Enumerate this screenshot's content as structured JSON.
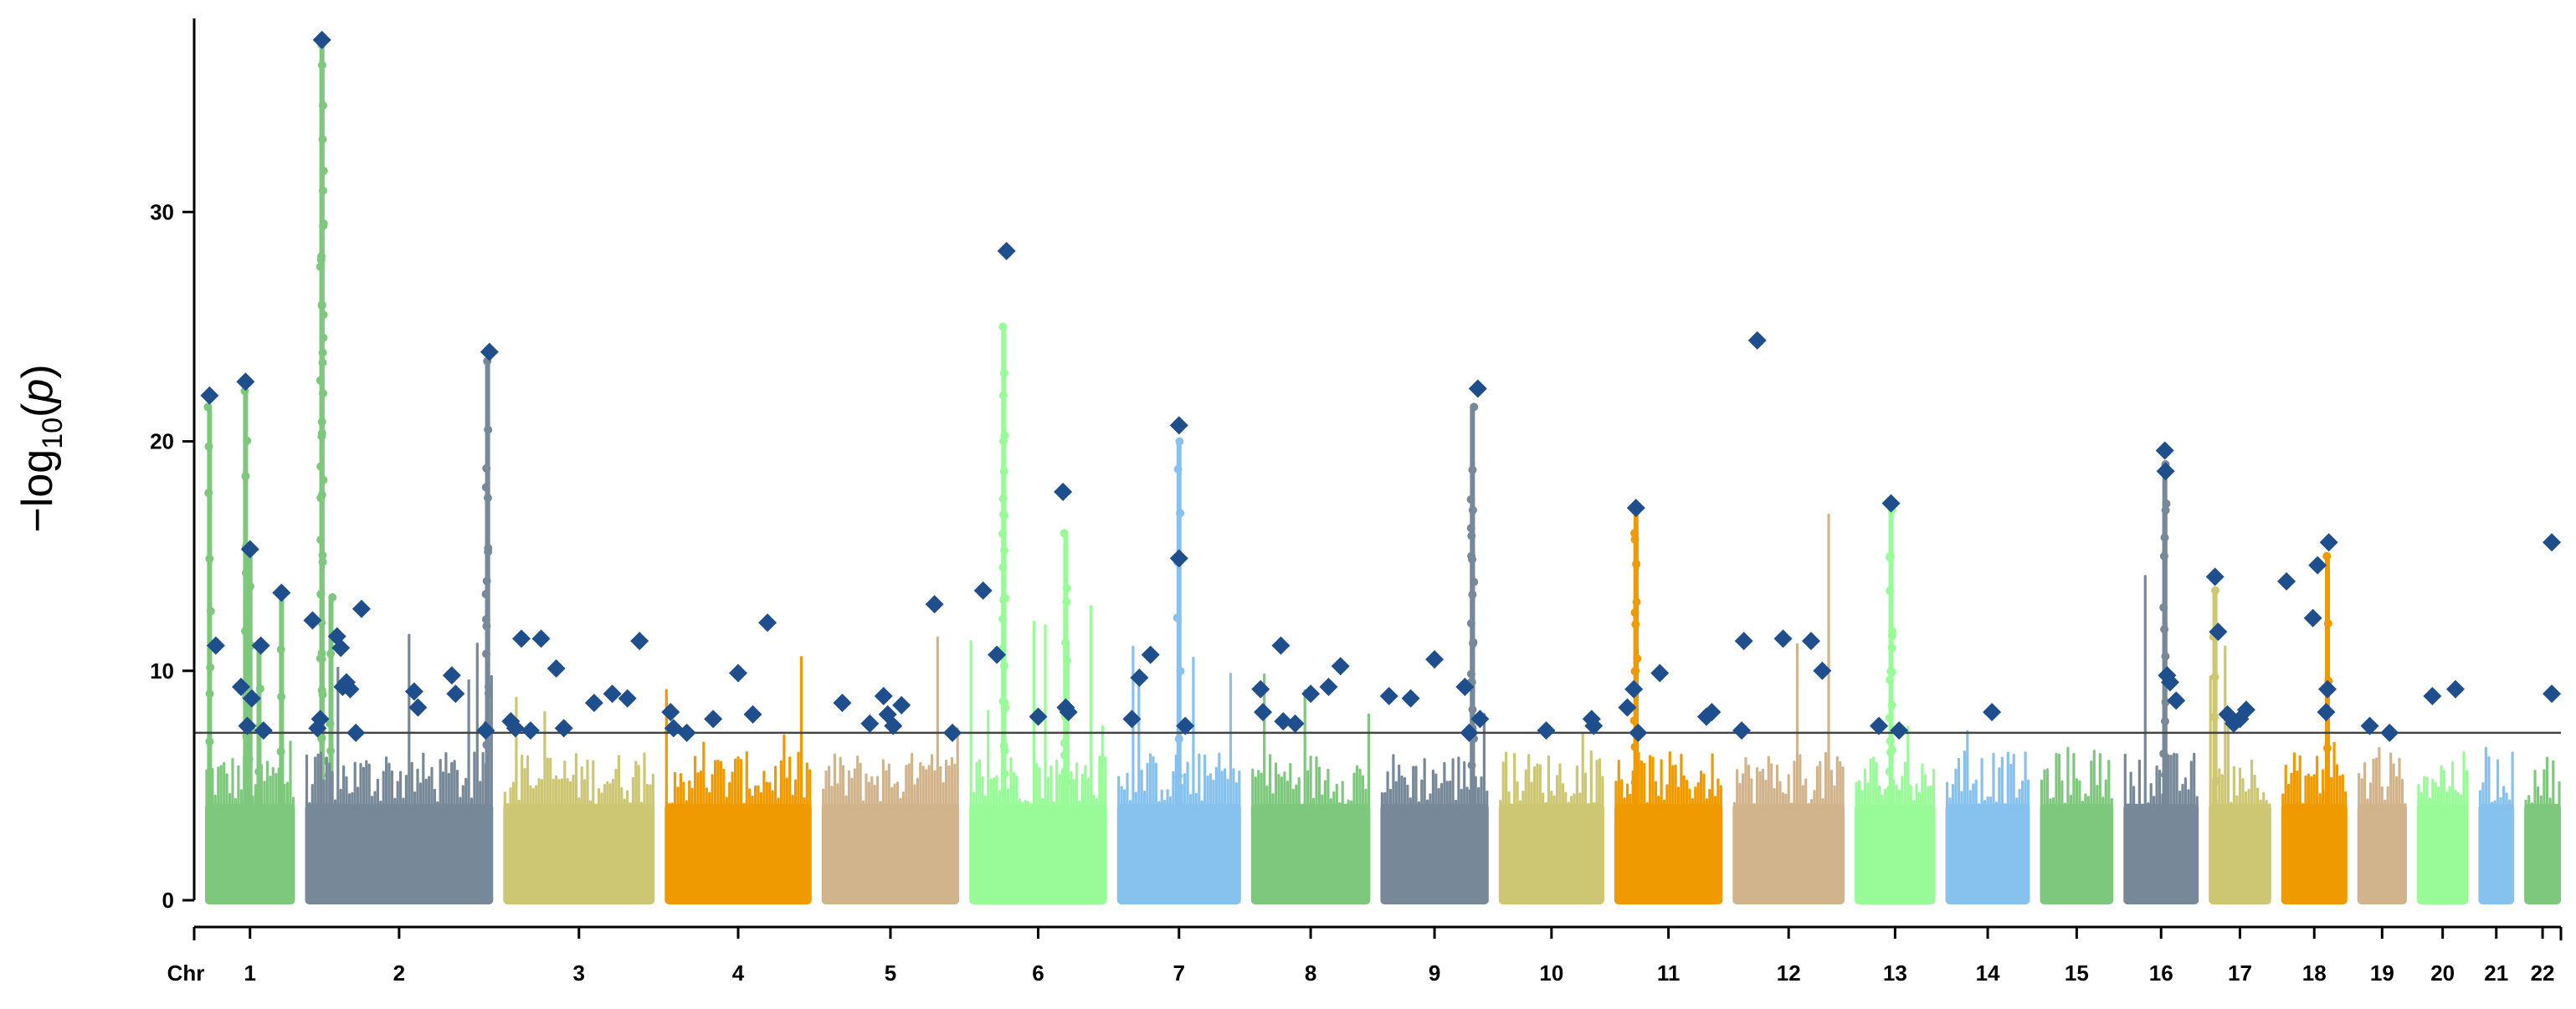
{
  "chart_data": {
    "type": "scatter",
    "subtype": "manhattan",
    "title": "",
    "ylabel": {
      "prefix": "−log",
      "subscript": "10",
      "open": "(",
      "variable": "p",
      "close": ")"
    },
    "xlabel": "Chr",
    "ylim": [
      0,
      38
    ],
    "yticks": [
      0,
      10,
      20,
      30
    ],
    "significance_threshold": 7.3,
    "chromosomes": [
      {
        "name": "1",
        "color": "#7ec87e",
        "max": 13,
        "spikes": [
          [
            0.05,
            21.5
          ],
          [
            0.45,
            22.2
          ],
          [
            0.5,
            15.2
          ],
          [
            0.6,
            11
          ],
          [
            1.3,
            37.3
          ],
          [
            1.3,
            36.4
          ],
          [
            1.3,
            29.5
          ],
          [
            0.85,
            13.3
          ],
          [
            1.4,
            13.2
          ]
        ]
      },
      {
        "name": "2",
        "color": "#778899",
        "max": 12.5,
        "spikes": [
          [
            0.97,
            23.5
          ],
          [
            0.97,
            18
          ]
        ]
      },
      {
        "name": "3",
        "color": "#cdc673",
        "max": 11,
        "spikes": []
      },
      {
        "name": "4",
        "color": "#ee9a00",
        "max": 10.5,
        "spikes": []
      },
      {
        "name": "5",
        "color": "#d2b48c",
        "max": 13,
        "spikes": []
      },
      {
        "name": "6",
        "color": "#98fb98",
        "max": 17,
        "spikes": [
          [
            0.25,
            25
          ],
          [
            0.25,
            22
          ],
          [
            0.25,
            17.5
          ],
          [
            0.7,
            16
          ],
          [
            0.7,
            13
          ]
        ]
      },
      {
        "name": "7",
        "color": "#87c1ee",
        "max": 12.5,
        "spikes": [
          [
            0.5,
            20
          ]
        ]
      },
      {
        "name": "8",
        "color": "#7ec87e",
        "max": 11,
        "spikes": []
      },
      {
        "name": "9",
        "color": "#778899",
        "max": 12,
        "spikes": [
          [
            0.85,
            21.5
          ],
          [
            0.85,
            17
          ],
          [
            0.85,
            15
          ]
        ]
      },
      {
        "name": "10",
        "color": "#cdc673",
        "max": 7.6,
        "spikes": []
      },
      {
        "name": "11",
        "color": "#ee9a00",
        "max": 9.5,
        "spikes": [
          [
            0.2,
            17
          ],
          [
            0.2,
            16
          ],
          [
            0.2,
            13
          ]
        ]
      },
      {
        "name": "12",
        "color": "#d2b48c",
        "max": 23,
        "spikes": []
      },
      {
        "name": "13",
        "color": "#98fb98",
        "max": 7.5,
        "spikes": [
          [
            0.45,
            17
          ],
          [
            0.45,
            15
          ],
          [
            0.45,
            11
          ]
        ]
      },
      {
        "name": "14",
        "color": "#87c1ee",
        "max": 8,
        "spikes": []
      },
      {
        "name": "15",
        "color": "#7ec87e",
        "max": 7,
        "spikes": []
      },
      {
        "name": "16",
        "color": "#778899",
        "max": 16.5,
        "spikes": [
          [
            0.55,
            19
          ],
          [
            0.55,
            17
          ]
        ]
      },
      {
        "name": "17",
        "color": "#cdc673",
        "max": 11,
        "spikes": [
          [
            0.1,
            13.5
          ]
        ]
      },
      {
        "name": "18",
        "color": "#ee9a00",
        "max": 13,
        "spikes": [
          [
            0.7,
            15
          ]
        ]
      },
      {
        "name": "19",
        "color": "#d2b48c",
        "max": 7.2,
        "spikes": []
      },
      {
        "name": "20",
        "color": "#98fb98",
        "max": 9,
        "spikes": []
      },
      {
        "name": "21",
        "color": "#87c1ee",
        "max": 6.5,
        "spikes": []
      },
      {
        "name": "22",
        "color": "#7ec87e",
        "max": 15,
        "spikes": []
      }
    ],
    "lead_snp_color": "#1f4e8c",
    "lead_snps": [
      {
        "chr": "1",
        "pos": 0.05,
        "y": 22.0
      },
      {
        "chr": "1",
        "pos": 0.12,
        "y": 11.1
      },
      {
        "chr": "1",
        "pos": 0.4,
        "y": 9.3
      },
      {
        "chr": "1",
        "pos": 0.45,
        "y": 22.6
      },
      {
        "chr": "1",
        "pos": 0.5,
        "y": 15.3
      },
      {
        "chr": "1",
        "pos": 0.52,
        "y": 8.8
      },
      {
        "chr": "1",
        "pos": 0.47,
        "y": 7.6
      },
      {
        "chr": "1",
        "pos": 0.62,
        "y": 11.1
      },
      {
        "chr": "1",
        "pos": 0.65,
        "y": 7.4
      },
      {
        "chr": "1",
        "pos": 0.85,
        "y": 13.4
      },
      {
        "chr": "1",
        "pos": 1.25,
        "y": 7.5
      },
      {
        "chr": "1",
        "pos": 1.28,
        "y": 7.9
      },
      {
        "chr": "1",
        "pos": 1.3,
        "y": 37.5
      },
      {
        "chr": "2",
        "pos": 0.04,
        "y": 12.2
      },
      {
        "chr": "2",
        "pos": 0.17,
        "y": 11.5
      },
      {
        "chr": "2",
        "pos": 0.19,
        "y": 11.0
      },
      {
        "chr": "2",
        "pos": 0.2,
        "y": 9.3
      },
      {
        "chr": "2",
        "pos": 0.22,
        "y": 9.5
      },
      {
        "chr": "2",
        "pos": 0.24,
        "y": 9.2
      },
      {
        "chr": "2",
        "pos": 0.27,
        "y": 7.3
      },
      {
        "chr": "2",
        "pos": 0.3,
        "y": 12.7
      },
      {
        "chr": "2",
        "pos": 0.58,
        "y": 9.1
      },
      {
        "chr": "2",
        "pos": 0.6,
        "y": 8.4
      },
      {
        "chr": "2",
        "pos": 0.78,
        "y": 9.8
      },
      {
        "chr": "2",
        "pos": 0.8,
        "y": 9.0
      },
      {
        "chr": "2",
        "pos": 0.96,
        "y": 7.4
      },
      {
        "chr": "2",
        "pos": 0.98,
        "y": 23.9
      },
      {
        "chr": "3",
        "pos": 0.05,
        "y": 7.8
      },
      {
        "chr": "3",
        "pos": 0.08,
        "y": 7.5
      },
      {
        "chr": "3",
        "pos": 0.12,
        "y": 11.4
      },
      {
        "chr": "3",
        "pos": 0.18,
        "y": 7.4
      },
      {
        "chr": "3",
        "pos": 0.25,
        "y": 11.4
      },
      {
        "chr": "3",
        "pos": 0.35,
        "y": 10.1
      },
      {
        "chr": "3",
        "pos": 0.4,
        "y": 7.5
      },
      {
        "chr": "3",
        "pos": 0.6,
        "y": 8.6
      },
      {
        "chr": "3",
        "pos": 0.72,
        "y": 9.0
      },
      {
        "chr": "3",
        "pos": 0.82,
        "y": 8.8
      },
      {
        "chr": "3",
        "pos": 0.9,
        "y": 11.3
      },
      {
        "chr": "4",
        "pos": 0.04,
        "y": 8.2
      },
      {
        "chr": "4",
        "pos": 0.06,
        "y": 7.5
      },
      {
        "chr": "4",
        "pos": 0.15,
        "y": 7.3
      },
      {
        "chr": "4",
        "pos": 0.33,
        "y": 7.9
      },
      {
        "chr": "4",
        "pos": 0.5,
        "y": 9.9
      },
      {
        "chr": "4",
        "pos": 0.6,
        "y": 8.1
      },
      {
        "chr": "4",
        "pos": 0.7,
        "y": 12.1
      },
      {
        "chr": "5",
        "pos": 0.15,
        "y": 8.6
      },
      {
        "chr": "5",
        "pos": 0.35,
        "y": 7.7
      },
      {
        "chr": "5",
        "pos": 0.45,
        "y": 8.9
      },
      {
        "chr": "5",
        "pos": 0.48,
        "y": 8.1
      },
      {
        "chr": "5",
        "pos": 0.52,
        "y": 7.6
      },
      {
        "chr": "5",
        "pos": 0.58,
        "y": 8.5
      },
      {
        "chr": "5",
        "pos": 0.82,
        "y": 12.9
      },
      {
        "chr": "5",
        "pos": 0.95,
        "y": 7.3
      },
      {
        "chr": "6",
        "pos": 0.1,
        "y": 13.5
      },
      {
        "chr": "6",
        "pos": 0.2,
        "y": 10.7
      },
      {
        "chr": "6",
        "pos": 0.27,
        "y": 28.3
      },
      {
        "chr": "6",
        "pos": 0.5,
        "y": 8.0
      },
      {
        "chr": "6",
        "pos": 0.68,
        "y": 17.8
      },
      {
        "chr": "6",
        "pos": 0.7,
        "y": 8.4
      },
      {
        "chr": "6",
        "pos": 0.72,
        "y": 8.2
      },
      {
        "chr": "7",
        "pos": 0.12,
        "y": 7.9
      },
      {
        "chr": "7",
        "pos": 0.18,
        "y": 9.7
      },
      {
        "chr": "7",
        "pos": 0.27,
        "y": 10.7
      },
      {
        "chr": "7",
        "pos": 0.5,
        "y": 20.7
      },
      {
        "chr": "7",
        "pos": 0.5,
        "y": 14.9
      },
      {
        "chr": "7",
        "pos": 0.55,
        "y": 7.6
      },
      {
        "chr": "8",
        "pos": 0.08,
        "y": 9.2
      },
      {
        "chr": "8",
        "pos": 0.1,
        "y": 8.2
      },
      {
        "chr": "8",
        "pos": 0.25,
        "y": 11.1
      },
      {
        "chr": "8",
        "pos": 0.27,
        "y": 7.8
      },
      {
        "chr": "8",
        "pos": 0.37,
        "y": 7.7
      },
      {
        "chr": "8",
        "pos": 0.5,
        "y": 9.0
      },
      {
        "chr": "8",
        "pos": 0.65,
        "y": 9.3
      },
      {
        "chr": "8",
        "pos": 0.75,
        "y": 10.2
      },
      {
        "chr": "9",
        "pos": 0.08,
        "y": 8.9
      },
      {
        "chr": "9",
        "pos": 0.28,
        "y": 8.8
      },
      {
        "chr": "9",
        "pos": 0.5,
        "y": 10.5
      },
      {
        "chr": "9",
        "pos": 0.78,
        "y": 9.3
      },
      {
        "chr": "9",
        "pos": 0.82,
        "y": 7.3
      },
      {
        "chr": "9",
        "pos": 0.9,
        "y": 22.3
      },
      {
        "chr": "9",
        "pos": 0.92,
        "y": 7.9
      },
      {
        "chr": "10",
        "pos": 0.45,
        "y": 7.4
      },
      {
        "chr": "10",
        "pos": 0.88,
        "y": 7.9
      },
      {
        "chr": "10",
        "pos": 0.9,
        "y": 7.6
      },
      {
        "chr": "11",
        "pos": 0.12,
        "y": 8.4
      },
      {
        "chr": "11",
        "pos": 0.18,
        "y": 9.2
      },
      {
        "chr": "11",
        "pos": 0.2,
        "y": 17.1
      },
      {
        "chr": "11",
        "pos": 0.22,
        "y": 7.3
      },
      {
        "chr": "11",
        "pos": 0.42,
        "y": 9.9
      },
      {
        "chr": "11",
        "pos": 0.85,
        "y": 8.0
      },
      {
        "chr": "11",
        "pos": 0.9,
        "y": 8.2
      },
      {
        "chr": "12",
        "pos": 0.08,
        "y": 7.4
      },
      {
        "chr": "12",
        "pos": 0.1,
        "y": 11.3
      },
      {
        "chr": "12",
        "pos": 0.22,
        "y": 24.4
      },
      {
        "chr": "12",
        "pos": 0.45,
        "y": 11.4
      },
      {
        "chr": "12",
        "pos": 0.7,
        "y": 11.3
      },
      {
        "chr": "12",
        "pos": 0.8,
        "y": 10.0
      },
      {
        "chr": "13",
        "pos": 0.3,
        "y": 7.6
      },
      {
        "chr": "13",
        "pos": 0.45,
        "y": 17.3
      },
      {
        "chr": "13",
        "pos": 0.55,
        "y": 7.4
      },
      {
        "chr": "14",
        "pos": 0.55,
        "y": 8.2
      },
      {
        "chr": "16",
        "pos": 0.55,
        "y": 19.6
      },
      {
        "chr": "16",
        "pos": 0.56,
        "y": 18.7
      },
      {
        "chr": "16",
        "pos": 0.58,
        "y": 9.8
      },
      {
        "chr": "16",
        "pos": 0.62,
        "y": 9.5
      },
      {
        "chr": "16",
        "pos": 0.7,
        "y": 8.7
      },
      {
        "chr": "17",
        "pos": 0.1,
        "y": 14.1
      },
      {
        "chr": "17",
        "pos": 0.15,
        "y": 11.7
      },
      {
        "chr": "17",
        "pos": 0.3,
        "y": 8.1
      },
      {
        "chr": "17",
        "pos": 0.4,
        "y": 7.7
      },
      {
        "chr": "17",
        "pos": 0.5,
        "y": 7.9
      },
      {
        "chr": "17",
        "pos": 0.6,
        "y": 8.3
      },
      {
        "chr": "18",
        "pos": 0.08,
        "y": 13.9
      },
      {
        "chr": "18",
        "pos": 0.48,
        "y": 12.3
      },
      {
        "chr": "18",
        "pos": 0.55,
        "y": 14.6
      },
      {
        "chr": "18",
        "pos": 0.72,
        "y": 15.6
      },
      {
        "chr": "18",
        "pos": 0.7,
        "y": 9.2
      },
      {
        "chr": "18",
        "pos": 0.68,
        "y": 8.2
      },
      {
        "chr": "19",
        "pos": 0.25,
        "y": 7.6
      },
      {
        "chr": "19",
        "pos": 0.65,
        "y": 7.3
      },
      {
        "chr": "20",
        "pos": 0.3,
        "y": 8.9
      },
      {
        "chr": "20",
        "pos": 0.75,
        "y": 9.2
      },
      {
        "chr": "22",
        "pos": 0.75,
        "y": 15.6
      },
      {
        "chr": "22",
        "pos": 0.75,
        "y": 9.0
      }
    ]
  }
}
